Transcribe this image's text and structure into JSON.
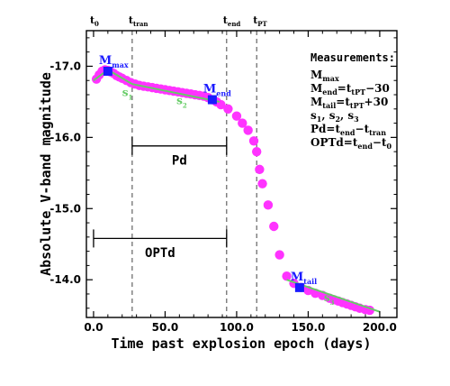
{
  "chart_data": {
    "type": "scatter",
    "xlabel": "Time past explosion epoch (days)",
    "ylabel": "Absolute V-band magnitude",
    "xlim": [
      -5,
      212
    ],
    "ylim": [
      -13.47,
      -17.5
    ],
    "y_inverted": true,
    "xticks": [
      0,
      50,
      100,
      150,
      200
    ],
    "xtick_labels": [
      "0.0",
      "50.0",
      "100.0",
      "150.0",
      "200.0"
    ],
    "yticks": [
      -17.0,
      -16.0,
      -15.0,
      -14.0
    ],
    "ytick_labels": [
      "-17.0",
      "-16.0",
      "-15.0",
      "-14.0"
    ],
    "grid": false,
    "colors": {
      "points": "#ff33ff",
      "fit": "#66cc66",
      "marker": "#1a1aff",
      "vlines": "#555555"
    },
    "epochs": [
      {
        "label": "t",
        "sub": "0",
        "x": 0
      },
      {
        "label": "t",
        "sub": "tran",
        "x": 27
      },
      {
        "label": "t",
        "sub": "end",
        "x": 93
      },
      {
        "label": "t",
        "sub": "PT",
        "x": 114
      }
    ],
    "marker_labels": [
      {
        "label": "M",
        "sub": "max",
        "x": 10,
        "y": -16.93
      },
      {
        "label": "M",
        "sub": "end",
        "x": 83,
        "y": -16.53
      },
      {
        "label": "M",
        "sub": "tail",
        "x": 144,
        "y": -13.89
      }
    ],
    "slope_labels": [
      {
        "label": "s",
        "sub": "1",
        "x": 20,
        "y": -16.58
      },
      {
        "label": "s",
        "sub": "2",
        "x": 58,
        "y": -16.47
      },
      {
        "label": "s",
        "sub": "3",
        "x": 161,
        "y": -13.7
      }
    ],
    "intervals": [
      {
        "label": "Pd",
        "x_start": 27,
        "x_end": 93,
        "y": -15.88,
        "label_y": -15.68
      },
      {
        "label": "OPTd",
        "x_start": 0,
        "x_end": 93,
        "y": -14.58,
        "label_y": -14.38
      }
    ],
    "points": [
      [
        2,
        -16.82
      ],
      [
        4,
        -16.88
      ],
      [
        6,
        -16.93
      ],
      [
        8,
        -16.95
      ],
      [
        10,
        -16.94
      ],
      [
        12,
        -16.92
      ],
      [
        14,
        -16.9
      ],
      [
        16,
        -16.87
      ],
      [
        18,
        -16.85
      ],
      [
        20,
        -16.83
      ],
      [
        23,
        -16.8
      ],
      [
        26,
        -16.77
      ],
      [
        29,
        -16.75
      ],
      [
        32,
        -16.73
      ],
      [
        35,
        -16.72
      ],
      [
        38,
        -16.71
      ],
      [
        41,
        -16.7
      ],
      [
        44,
        -16.69
      ],
      [
        47,
        -16.68
      ],
      [
        50,
        -16.67
      ],
      [
        53,
        -16.66
      ],
      [
        56,
        -16.65
      ],
      [
        59,
        -16.64
      ],
      [
        62,
        -16.63
      ],
      [
        65,
        -16.62
      ],
      [
        68,
        -16.61
      ],
      [
        71,
        -16.6
      ],
      [
        74,
        -16.59
      ],
      [
        77,
        -16.58
      ],
      [
        80,
        -16.56
      ],
      [
        83,
        -16.53
      ],
      [
        86,
        -16.5
      ],
      [
        89,
        -16.46
      ],
      [
        94,
        -16.4
      ],
      [
        100,
        -16.3
      ],
      [
        104,
        -16.2
      ],
      [
        108,
        -16.1
      ],
      [
        112,
        -15.95
      ],
      [
        114,
        -15.8
      ],
      [
        116,
        -15.55
      ],
      [
        118,
        -15.35
      ],
      [
        122,
        -15.05
      ],
      [
        126,
        -14.75
      ],
      [
        130,
        -14.35
      ],
      [
        135,
        -14.05
      ],
      [
        140,
        -13.95
      ],
      [
        145,
        -13.89
      ],
      [
        150,
        -13.85
      ],
      [
        155,
        -13.81
      ],
      [
        160,
        -13.78
      ],
      [
        165,
        -13.74
      ],
      [
        168,
        -13.72
      ],
      [
        171,
        -13.7
      ],
      [
        174,
        -13.68
      ],
      [
        177,
        -13.66
      ],
      [
        180,
        -13.64
      ],
      [
        183,
        -13.62
      ],
      [
        186,
        -13.6
      ],
      [
        190,
        -13.58
      ],
      [
        193,
        -13.57
      ]
    ],
    "fit_segments": [
      [
        [
          0,
          -16.8
        ],
        [
          10,
          -16.95
        ],
        [
          27,
          -16.75
        ]
      ],
      [
        [
          27,
          -16.75
        ],
        [
          88,
          -16.5
        ]
      ],
      [
        [
          135,
          -14.0
        ],
        [
          200,
          -13.55
        ]
      ]
    ],
    "measurements": {
      "title": "Measurements:",
      "lines": [
        [
          {
            "t": "M"
          },
          {
            "t": "max",
            "s": 1
          }
        ],
        [
          {
            "t": "M"
          },
          {
            "t": "end",
            "s": 1
          },
          {
            "t": "=t"
          },
          {
            "t": "tPT",
            "s": 1
          },
          {
            "t": "−30"
          }
        ],
        [
          {
            "t": "M"
          },
          {
            "t": "tail",
            "s": 1
          },
          {
            "t": "=t"
          },
          {
            "t": "tPT",
            "s": 1
          },
          {
            "t": "+30"
          }
        ],
        [
          {
            "t": "s"
          },
          {
            "t": "1",
            "s": 1
          },
          {
            "t": ", s"
          },
          {
            "t": "2",
            "s": 1
          },
          {
            "t": ", s"
          },
          {
            "t": "3",
            "s": 1
          }
        ],
        [
          {
            "t": "Pd=t"
          },
          {
            "t": "end",
            "s": 1
          },
          {
            "t": "−t"
          },
          {
            "t": "tran",
            "s": 1
          }
        ],
        [
          {
            "t": "OPTd=t"
          },
          {
            "t": "end",
            "s": 1
          },
          {
            "t": "−t"
          },
          {
            "t": "0",
            "s": 1
          }
        ]
      ]
    }
  }
}
